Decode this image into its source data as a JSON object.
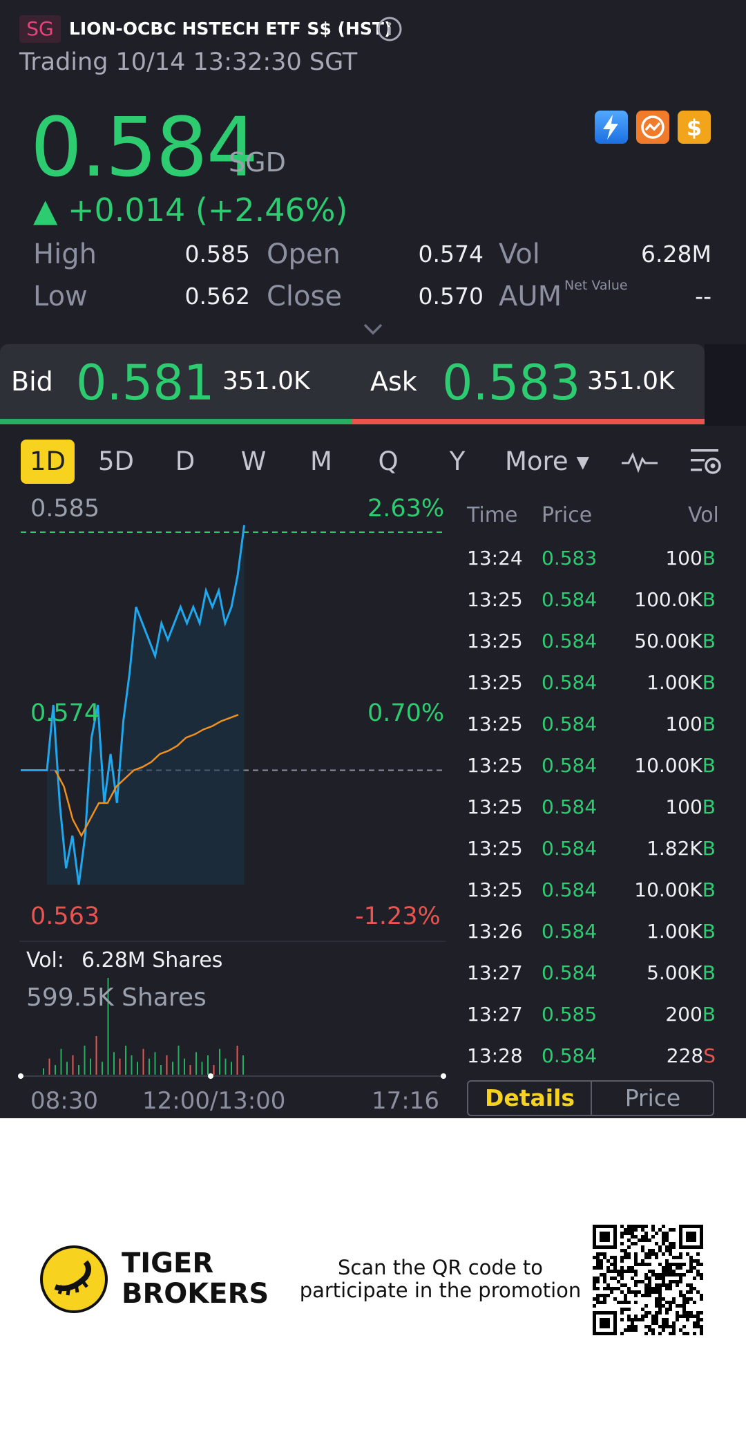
{
  "header": {
    "market_badge": "SG",
    "title": "LION-OCBC HSTECH ETF S$ (HST)",
    "status": "Trading 10/14 13:32:30 SGT"
  },
  "quote": {
    "price": "0.584",
    "currency": "SGD",
    "change": "▲ +0.014 (+2.46%)",
    "up_color": "#2ecc71",
    "down_color": "#e8544f"
  },
  "stats": {
    "high_label": "High",
    "high": "0.585",
    "open_label": "Open",
    "open": "0.574",
    "vol_label": "Vol",
    "vol": "6.28M",
    "low_label": "Low",
    "low": "0.562",
    "close_label": "Close",
    "close": "0.570",
    "aum_label": "AUM",
    "aum_sup": "Net Value",
    "aum": "--"
  },
  "bidask": {
    "bid_label": "Bid",
    "bid_price": "0.581",
    "bid_size": "351.0K",
    "ask_label": "Ask",
    "ask_price": "0.583",
    "ask_size": "351.0K",
    "bid_ratio": 0.5
  },
  "tabs": [
    "1D",
    "5D",
    "D",
    "W",
    "M",
    "Q",
    "Y",
    "More ▾"
  ],
  "active_tab": "1D",
  "chart": {
    "high_price": "0.585",
    "high_pct": "2.63%",
    "mid_price": "0.574",
    "mid_pct": "0.70%",
    "low_price": "0.563",
    "low_pct": "-1.23%",
    "vol_label": "Vol:",
    "vol_value": "6.28M Shares",
    "vol_sub": "599.5K Shares",
    "time_start": "08:30",
    "time_mid": "12:00/13:00",
    "time_end": "17:16"
  },
  "chart_data": {
    "type": "line",
    "y_range": [
      0.563,
      0.585
    ],
    "prev_close": 0.57,
    "series": [
      {
        "values": [
          0.57,
          0.574,
          0.568,
          0.564,
          0.566,
          0.563,
          0.566,
          0.572,
          0.574,
          0.568,
          0.571,
          0.568,
          0.573,
          0.576,
          0.58,
          0.579,
          0.578,
          0.577,
          0.579,
          0.578,
          0.579,
          0.58,
          0.579,
          0.58,
          0.579,
          0.581,
          0.58,
          0.581,
          0.579,
          0.58,
          0.582,
          0.585
        ]
      },
      {
        "values": [
          0.57,
          0.569,
          0.567,
          0.566,
          0.567,
          0.568,
          0.568,
          0.569,
          0.5695,
          0.57,
          0.5702,
          0.5705,
          0.571,
          0.5712,
          0.5715,
          0.572,
          0.5722,
          0.5725,
          0.5727,
          0.573,
          0.5732,
          0.5734
        ]
      }
    ],
    "volume_bars": [
      2,
      5,
      3,
      8,
      4,
      6,
      3,
      9,
      5,
      12,
      4,
      30,
      7,
      5,
      9,
      6,
      4,
      8,
      5,
      7,
      3,
      6,
      4,
      9,
      5,
      3,
      7,
      4,
      6,
      3,
      8,
      5,
      4,
      9,
      6
    ]
  },
  "trades": {
    "headers": {
      "time": "Time",
      "price": "Price",
      "vol": "Vol"
    },
    "rows": [
      {
        "time": "13:24",
        "price": "0.583",
        "vol": "100",
        "side": "B"
      },
      {
        "time": "13:25",
        "price": "0.584",
        "vol": "100.0K",
        "side": "B"
      },
      {
        "time": "13:25",
        "price": "0.584",
        "vol": "50.00K",
        "side": "B"
      },
      {
        "time": "13:25",
        "price": "0.584",
        "vol": "1.00K",
        "side": "B"
      },
      {
        "time": "13:25",
        "price": "0.584",
        "vol": "100",
        "side": "B"
      },
      {
        "time": "13:25",
        "price": "0.584",
        "vol": "10.00K",
        "side": "B"
      },
      {
        "time": "13:25",
        "price": "0.584",
        "vol": "100",
        "side": "B"
      },
      {
        "time": "13:25",
        "price": "0.584",
        "vol": "1.82K",
        "side": "B"
      },
      {
        "time": "13:25",
        "price": "0.584",
        "vol": "10.00K",
        "side": "B"
      },
      {
        "time": "13:26",
        "price": "0.584",
        "vol": "1.00K",
        "side": "B"
      },
      {
        "time": "13:27",
        "price": "0.584",
        "vol": "5.00K",
        "side": "B"
      },
      {
        "time": "13:27",
        "price": "0.585",
        "vol": "200",
        "side": "B"
      },
      {
        "time": "13:28",
        "price": "0.584",
        "vol": "228",
        "side": "S"
      }
    ],
    "details_label": "Details",
    "price_label": "Price"
  },
  "footer": {
    "brand_line1": "TIGER",
    "brand_line2": "BROKERS",
    "promo_line1": "Scan the QR code to",
    "promo_line2": "participate in the promotion"
  }
}
